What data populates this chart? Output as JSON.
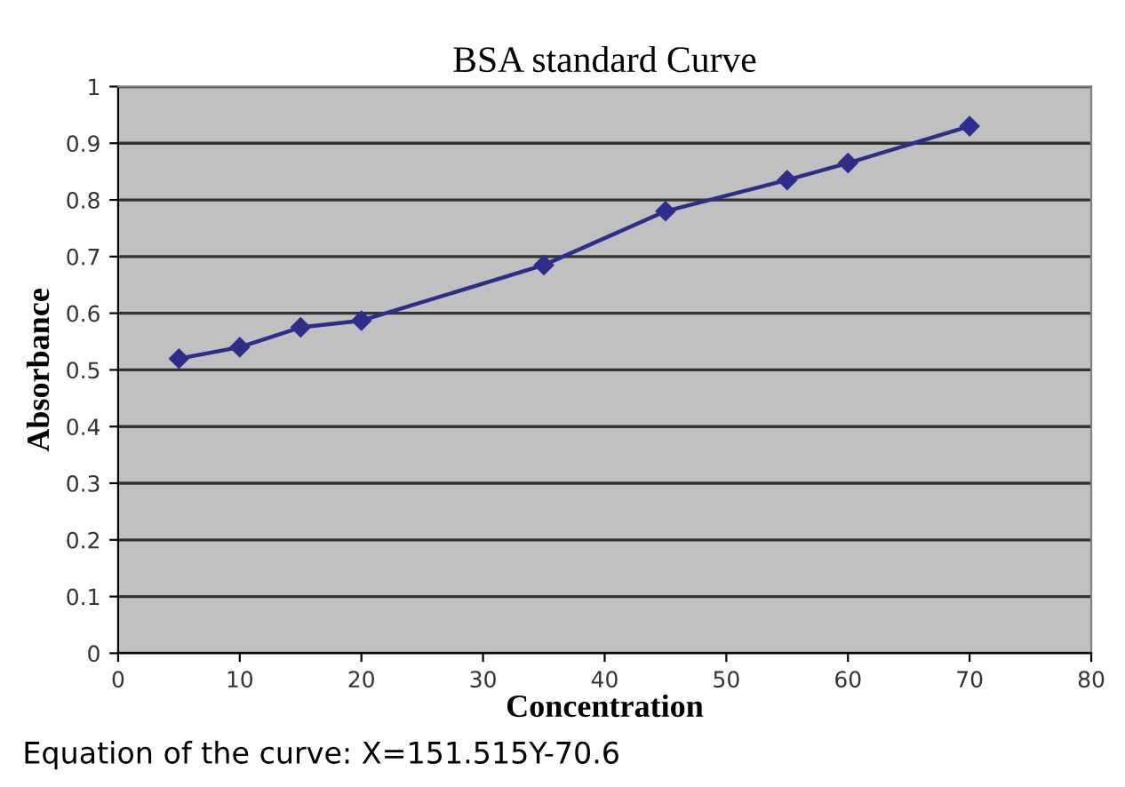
{
  "chart_data": {
    "type": "line",
    "title": "BSA standard Curve",
    "xlabel": "Concentration",
    "ylabel": "Absorbance",
    "x": [
      5,
      10,
      15,
      20,
      35,
      45,
      55,
      60,
      70
    ],
    "series": [
      {
        "color": "#2e2e8a",
        "values": [
          0.52,
          0.54,
          0.575,
          0.587,
          0.685,
          0.78,
          0.835,
          0.865,
          0.93
        ]
      }
    ],
    "xlim": [
      0,
      80
    ],
    "xticks": [
      0,
      10,
      20,
      30,
      40,
      50,
      60,
      70,
      80
    ],
    "ylim": [
      0,
      1
    ],
    "yticks": [
      0,
      0.1,
      0.2,
      0.3,
      0.4,
      0.5,
      0.6,
      0.7,
      0.8,
      0.9,
      1
    ],
    "grid": "y",
    "legend": false,
    "marker": "diamond",
    "line_style": "solid",
    "annotations": [
      "Equation of the curve: X=151.515Y-70.6"
    ]
  }
}
